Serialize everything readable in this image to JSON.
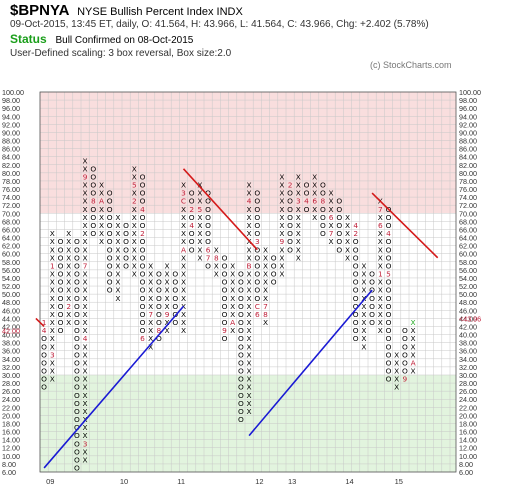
{
  "header": {
    "symbol": "$BPNYA",
    "name": "NYSE Bullish Percent Index",
    "exchange": "INDX",
    "quote": "09-Oct-2015, 13:45 ET, daily, O: 41.564, H: 43.966, L: 41.564, C: 43.966, Chg: +2.402 (5.78%)",
    "status_label": "Status",
    "status_text": "Bull Confirmed on 08-Oct-2015",
    "scaling": "User-Defined scaling: 3 box reversal, Box size:2.0",
    "copyright": "(c) StockCharts.com"
  },
  "chart_data": {
    "type": "point-and-figure",
    "box_size": 2.0,
    "reversal": 3,
    "ylim": [
      6,
      100
    ],
    "y_ticks": [
      "100.00",
      "98.00",
      "96.00",
      "94.00",
      "92.00",
      "90.00",
      "88.00",
      "86.00",
      "84.00",
      "82.00",
      "80.00",
      "78.00",
      "76.00",
      "74.00",
      "72.00",
      "70.00",
      "68.00",
      "66.00",
      "64.00",
      "62.00",
      "60.00",
      "58.00",
      "56.00",
      "54.00",
      "52.00",
      "50.00",
      "48.00",
      "46.00",
      "44.00",
      "42.00",
      "40.00",
      "38.00",
      "36.00",
      "34.00",
      "32.00",
      "30.00",
      "28.00",
      "26.00",
      "24.00",
      "22.00",
      "20.00",
      "18.00",
      "16.00",
      "14.00",
      "12.00",
      "10.00",
      "8.00",
      "6.00"
    ],
    "x_labels": [
      {
        "label": "09",
        "col": 0.5
      },
      {
        "label": "10",
        "col": 9.5
      },
      {
        "label": "11",
        "col": 16.5
      },
      {
        "label": "12",
        "col": 26
      },
      {
        "label": "13",
        "col": 30
      },
      {
        "label": "14",
        "col": 37
      },
      {
        "label": "15",
        "col": 43
      }
    ],
    "zones": [
      {
        "from": 70,
        "to": 100,
        "color": "#f9dede"
      },
      {
        "from": 30,
        "to": 70,
        "color": "#ffffff"
      },
      {
        "from": 6,
        "to": 30,
        "color": "#e2f4de"
      }
    ],
    "last_price_left": "42.00",
    "last_price_right": "<43.96",
    "columns": [
      {
        "type": "O",
        "high": 44,
        "low": 28
      },
      {
        "type": "X",
        "high": 66,
        "low": 30
      },
      {
        "type": "O",
        "high": 64,
        "low": 42
      },
      {
        "type": "X",
        "high": 66,
        "low": 44
      },
      {
        "type": "O",
        "high": 64,
        "low": 8
      },
      {
        "type": "X",
        "high": 84,
        "low": 10
      },
      {
        "type": "O",
        "high": 82,
        "low": 66
      },
      {
        "type": "X",
        "high": 78,
        "low": 64
      },
      {
        "type": "O",
        "high": 76,
        "low": 52
      },
      {
        "type": "X",
        "high": 70,
        "low": 50
      },
      {
        "type": "O",
        "high": 68,
        "low": 58
      },
      {
        "type": "X",
        "high": 82,
        "low": 56
      },
      {
        "type": "O",
        "high": 80,
        "low": 40
      },
      {
        "type": "X",
        "high": 58,
        "low": 38
      },
      {
        "type": "O",
        "high": 56,
        "low": 40
      },
      {
        "type": "X",
        "high": 58,
        "low": 42
      },
      {
        "type": "O",
        "high": 56,
        "low": 44
      },
      {
        "type": "X",
        "high": 78,
        "low": 42
      },
      {
        "type": "O",
        "high": 76,
        "low": 62
      },
      {
        "type": "X",
        "high": 78,
        "low": 60
      },
      {
        "type": "O",
        "high": 76,
        "low": 58
      },
      {
        "type": "X",
        "high": 62,
        "low": 56
      },
      {
        "type": "O",
        "high": 60,
        "low": 40
      },
      {
        "type": "X",
        "high": 58,
        "low": 42
      },
      {
        "type": "O",
        "high": 56,
        "low": 20
      },
      {
        "type": "X",
        "high": 78,
        "low": 22
      },
      {
        "type": "O",
        "high": 76,
        "low": 46
      },
      {
        "type": "X",
        "high": 62,
        "low": 44
      },
      {
        "type": "O",
        "high": 60,
        "low": 54
      },
      {
        "type": "X",
        "high": 80,
        "low": 56
      },
      {
        "type": "O",
        "high": 78,
        "low": 62
      },
      {
        "type": "X",
        "high": 80,
        "low": 60
      },
      {
        "type": "O",
        "high": 78,
        "low": 72
      },
      {
        "type": "X",
        "high": 80,
        "low": 70
      },
      {
        "type": "O",
        "high": 78,
        "low": 66
      },
      {
        "type": "X",
        "high": 76,
        "low": 64
      },
      {
        "type": "O",
        "high": 74,
        "low": 62
      },
      {
        "type": "X",
        "high": 70,
        "low": 60
      },
      {
        "type": "O",
        "high": 68,
        "low": 40
      },
      {
        "type": "X",
        "high": 58,
        "low": 38
      },
      {
        "type": "O",
        "high": 56,
        "low": 44
      },
      {
        "type": "X",
        "high": 74,
        "low": 42
      },
      {
        "type": "O",
        "high": 72,
        "low": 30
      },
      {
        "type": "X",
        "high": 36,
        "low": 28
      },
      {
        "type": "O",
        "high": 42,
        "low": 30
      },
      {
        "type": "X",
        "high": 44,
        "low": 32
      }
    ],
    "month_marks": [
      {
        "col": 0,
        "price": 44,
        "label": "1"
      },
      {
        "col": 0,
        "price": 42,
        "label": "4"
      },
      {
        "col": 1,
        "price": 36,
        "label": "3"
      },
      {
        "col": 1,
        "price": 58,
        "label": "1"
      },
      {
        "col": 3,
        "price": 48,
        "label": "2"
      },
      {
        "col": 5,
        "price": 14,
        "label": "3"
      },
      {
        "col": 5,
        "price": 40,
        "label": "4"
      },
      {
        "col": 5,
        "price": 58,
        "label": "7"
      },
      {
        "col": 5,
        "price": 80,
        "label": "9"
      },
      {
        "col": 6,
        "price": 56,
        "label": "5"
      },
      {
        "col": 6,
        "price": 74,
        "label": "8"
      },
      {
        "col": 7,
        "price": 74,
        "label": "A"
      },
      {
        "col": 7,
        "price": 80,
        "label": "9"
      },
      {
        "col": 11,
        "price": 74,
        "label": "2"
      },
      {
        "col": 11,
        "price": 78,
        "label": "5"
      },
      {
        "col": 12,
        "price": 66,
        "label": "2"
      },
      {
        "col": 12,
        "price": 72,
        "label": "4"
      },
      {
        "col": 12,
        "price": 40,
        "label": "6"
      },
      {
        "col": 13,
        "price": 46,
        "label": "7"
      },
      {
        "col": 14,
        "price": 42,
        "label": "8"
      },
      {
        "col": 15,
        "price": 46,
        "label": "9"
      },
      {
        "col": 17,
        "price": 62,
        "label": "A"
      },
      {
        "col": 17,
        "price": 74,
        "label": "C"
      },
      {
        "col": 17,
        "price": 76,
        "label": "3"
      },
      {
        "col": 18,
        "price": 68,
        "label": "4"
      },
      {
        "col": 18,
        "price": 72,
        "label": "2"
      },
      {
        "col": 19,
        "price": 72,
        "label": "5"
      },
      {
        "col": 20,
        "price": 62,
        "label": "6"
      },
      {
        "col": 20,
        "price": 60,
        "label": "7"
      },
      {
        "col": 21,
        "price": 60,
        "label": "8"
      },
      {
        "col": 22,
        "price": 42,
        "label": "9"
      },
      {
        "col": 23,
        "price": 44,
        "label": "A"
      },
      {
        "col": 25,
        "price": 58,
        "label": "B"
      },
      {
        "col": 25,
        "price": 74,
        "label": "4"
      },
      {
        "col": 26,
        "price": 64,
        "label": "3"
      },
      {
        "col": 26,
        "price": 48,
        "label": "C"
      },
      {
        "col": 26,
        "price": 46,
        "label": "6"
      },
      {
        "col": 27,
        "price": 64,
        "label": "5"
      },
      {
        "col": 27,
        "price": 48,
        "label": "7"
      },
      {
        "col": 27,
        "price": 46,
        "label": "8"
      },
      {
        "col": 29,
        "price": 64,
        "label": "9"
      },
      {
        "col": 30,
        "price": 78,
        "label": "2"
      },
      {
        "col": 31,
        "price": 74,
        "label": "3"
      },
      {
        "col": 32,
        "price": 74,
        "label": "4"
      },
      {
        "col": 33,
        "price": 74,
        "label": "6"
      },
      {
        "col": 34,
        "price": 74,
        "label": "8"
      },
      {
        "col": 35,
        "price": 70,
        "label": "6"
      },
      {
        "col": 35,
        "price": 66,
        "label": "7"
      },
      {
        "col": 37,
        "price": 74,
        "label": "9"
      },
      {
        "col": 38,
        "price": 66,
        "label": "2"
      },
      {
        "col": 38,
        "price": 68,
        "label": "4"
      },
      {
        "col": 39,
        "price": 68,
        "label": "3"
      },
      {
        "col": 41,
        "price": 56,
        "label": "1"
      },
      {
        "col": 41,
        "price": 68,
        "label": "6"
      },
      {
        "col": 41,
        "price": 72,
        "label": "7"
      },
      {
        "col": 42,
        "price": 56,
        "label": "5"
      },
      {
        "col": 42,
        "price": 66,
        "label": "4"
      },
      {
        "col": 43,
        "price": 56,
        "label": "7"
      },
      {
        "col": 43,
        "price": 66,
        "label": "6"
      },
      {
        "col": 44,
        "price": 50,
        "label": "8"
      },
      {
        "col": 44,
        "price": 30,
        "label": "9"
      },
      {
        "col": 45,
        "price": 34,
        "label": "A"
      }
    ],
    "trendlines": [
      {
        "color": "#1a1ad4",
        "from": {
          "col": 0,
          "price": 8
        },
        "to": {
          "col": 17,
          "price": 48
        }
      },
      {
        "color": "#1a1ad4",
        "from": {
          "col": 25,
          "price": 16
        },
        "to": {
          "col": 40,
          "price": 52
        }
      },
      {
        "color": "#d41a1a",
        "from": {
          "col": 17,
          "price": 82
        },
        "to": {
          "col": 26,
          "price": 62
        }
      },
      {
        "color": "#d41a1a",
        "from": {
          "col": 40,
          "price": 76
        },
        "to": {
          "col": 48,
          "price": 60
        }
      },
      {
        "color": "#d41a1a",
        "from": {
          "col": -1,
          "price": 45
        },
        "to": {
          "col": 0,
          "price": 43
        }
      }
    ],
    "colors": {
      "x_mark": "#000000",
      "o_mark": "#000000",
      "month_mark": "#c0203a",
      "last_x": "#22aa22",
      "last_price": "#c0203a",
      "grid": "#c8c8c8"
    }
  }
}
